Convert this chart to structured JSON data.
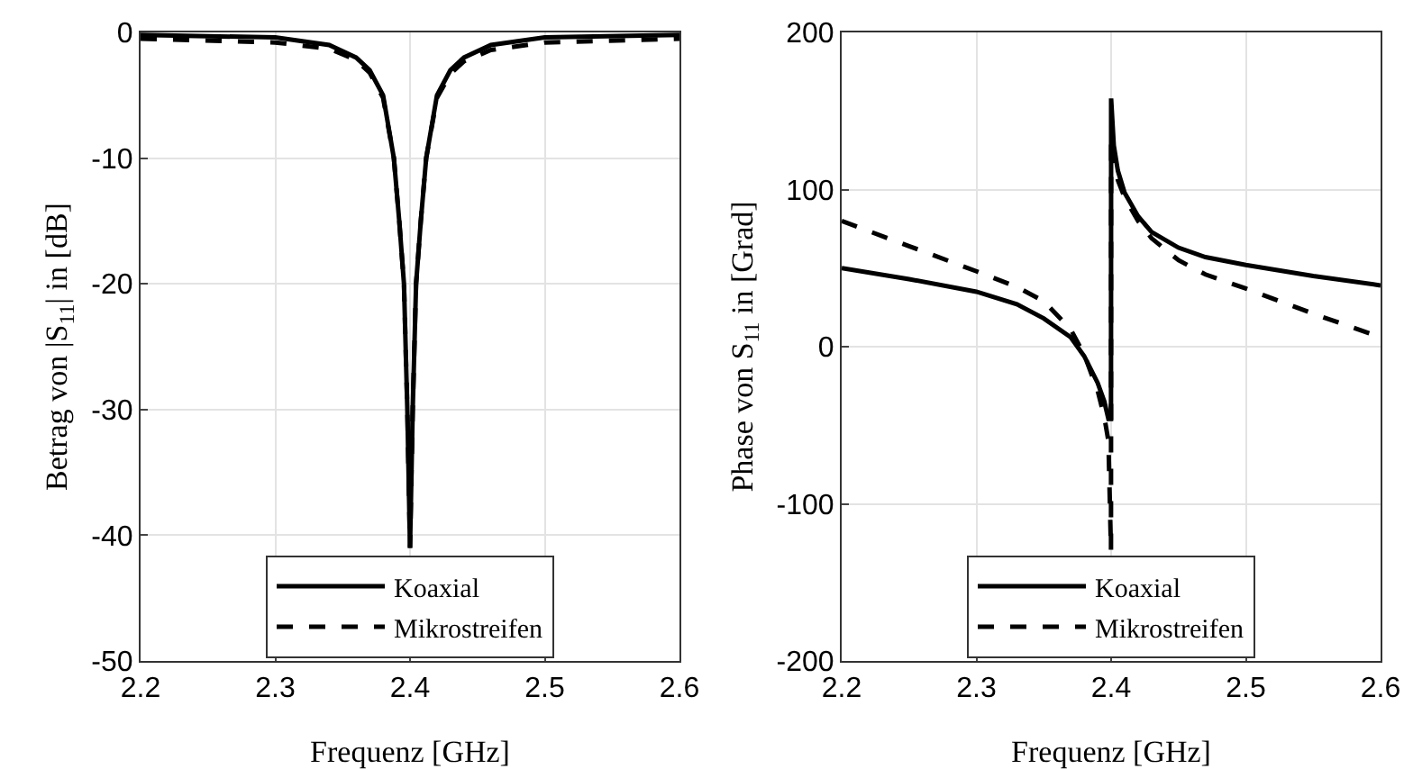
{
  "chart_data": [
    {
      "type": "line",
      "xlabel": "Frequenz [GHz]",
      "ylabel": "Betrag von |S$_{11}$| in [dB]",
      "xlim": [
        2.2,
        2.6
      ],
      "xticks": [
        2.2,
        2.3,
        2.4,
        2.5,
        2.6
      ],
      "ylim": [
        -50,
        0
      ],
      "yticks": [
        -50,
        -40,
        -30,
        -20,
        -10,
        0
      ],
      "grid": true,
      "legend": "bottom",
      "marker": "none",
      "series": [
        {
          "name": "Koaxial",
          "color": "#000000",
          "line_style": "solid",
          "x": [
            2.2,
            2.3,
            2.34,
            2.36,
            2.37,
            2.38,
            2.388,
            2.392,
            2.3955,
            2.398,
            2.4,
            2.402,
            2.4045,
            2.408,
            2.412,
            2.42,
            2.43,
            2.44,
            2.46,
            2.5,
            2.6
          ],
          "values": [
            -0.2,
            -0.4,
            -1,
            -2,
            -3,
            -5,
            -10,
            -15,
            -20,
            -30,
            -41,
            -30,
            -20,
            -15,
            -10,
            -5,
            -3,
            -2,
            -1,
            -0.4,
            -0.2
          ]
        },
        {
          "name": "Mikrostreifen",
          "color": "#000000",
          "line_style": "dashed",
          "x": [
            2.2,
            2.3,
            2.34,
            2.36,
            2.37,
            2.38,
            2.388,
            2.392,
            2.3955,
            2.398,
            2.4,
            2.402,
            2.4045,
            2.408,
            2.412,
            2.42,
            2.43,
            2.44,
            2.46,
            2.5,
            2.6
          ],
          "values": [
            -0.5,
            -0.8,
            -1.3,
            -2.2,
            -3.2,
            -5.2,
            -10,
            -15,
            -20,
            -30,
            -41,
            -30,
            -20,
            -15,
            -10,
            -5.2,
            -3.3,
            -2.3,
            -1.4,
            -0.8,
            -0.5
          ]
        }
      ]
    },
    {
      "type": "line",
      "xlabel": "Frequenz [GHz]",
      "ylabel": "Phase von S$_{11}$ in [Grad]",
      "xlim": [
        2.2,
        2.6
      ],
      "xticks": [
        2.2,
        2.3,
        2.4,
        2.5,
        2.6
      ],
      "ylim": [
        -200,
        200
      ],
      "yticks": [
        -200,
        -100,
        0,
        100,
        200
      ],
      "grid": true,
      "legend": "bottom",
      "marker": "none",
      "series": [
        {
          "name": "Koaxial",
          "color": "#000000",
          "line_style": "solid",
          "x": [
            2.2,
            2.25,
            2.3,
            2.33,
            2.35,
            2.37,
            2.38,
            2.39,
            2.395,
            2.398,
            2.3999,
            2.4,
            2.402,
            2.405,
            2.41,
            2.42,
            2.43,
            2.45,
            2.47,
            2.5,
            2.55,
            2.6
          ],
          "values": [
            50,
            43,
            35,
            27,
            18,
            6,
            -6,
            -23,
            -35,
            -46,
            -46,
            158,
            128,
            112,
            98,
            83,
            73,
            63,
            57,
            52,
            45,
            39
          ]
        },
        {
          "name": "Mikrostreifen",
          "color": "#000000",
          "line_style": "dashed",
          "x": [
            2.2,
            2.25,
            2.3,
            2.33,
            2.35,
            2.37,
            2.38,
            2.39,
            2.395,
            2.398,
            2.3999,
            2.4,
            2.402,
            2.405,
            2.41,
            2.42,
            2.43,
            2.45,
            2.47,
            2.5,
            2.55,
            2.6
          ],
          "values": [
            80,
            64,
            48,
            38,
            29,
            11,
            -5,
            -28,
            -45,
            -60,
            -130,
            133,
            118,
            106,
            95,
            80,
            69,
            55,
            46,
            37,
            21,
            6
          ]
        }
      ]
    }
  ]
}
